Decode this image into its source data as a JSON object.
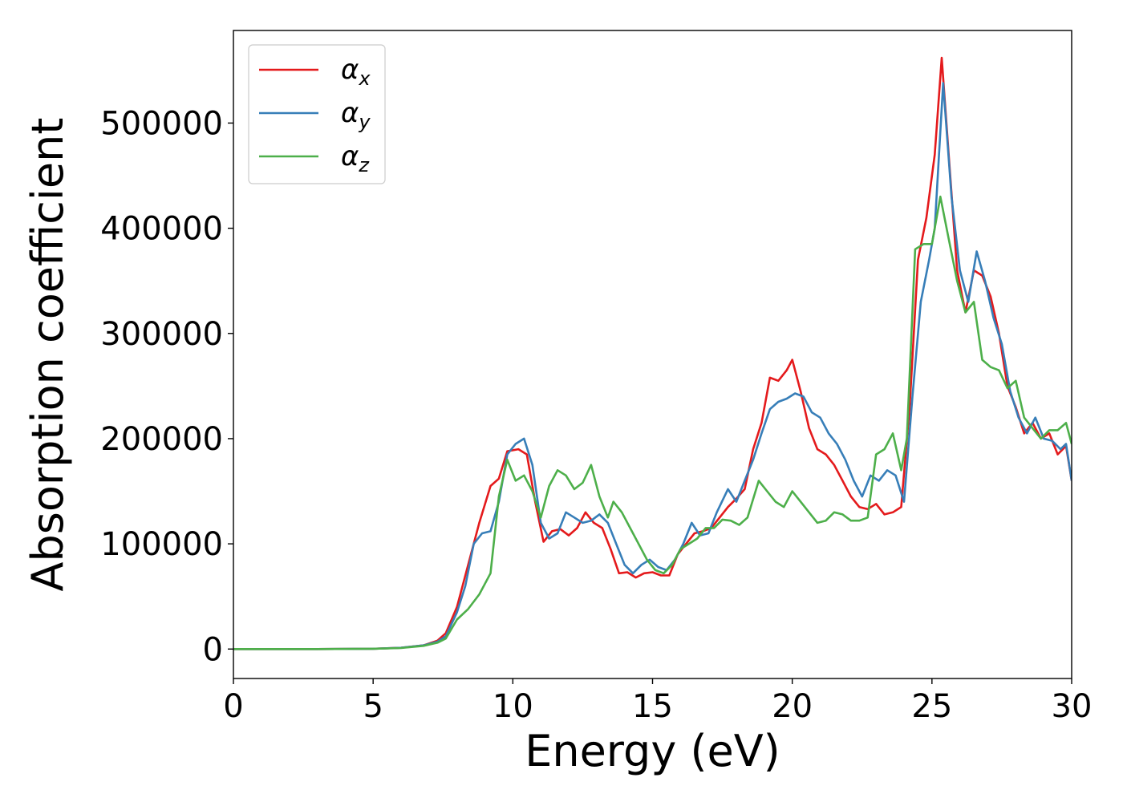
{
  "chart_data": {
    "type": "line",
    "title": "",
    "xlabel": "Energy (eV)",
    "ylabel": "Absorption coefficient",
    "xlim": [
      0,
      30
    ],
    "ylim": [
      -28000,
      588000
    ],
    "xticks": [
      0,
      5,
      10,
      15,
      20,
      25,
      30
    ],
    "yticks": [
      0,
      100000,
      200000,
      300000,
      400000,
      500000
    ],
    "xtick_labels": [
      "0",
      "5",
      "10",
      "15",
      "20",
      "25",
      "30"
    ],
    "ytick_labels": [
      "0",
      "100000",
      "200000",
      "300000",
      "400000",
      "500000"
    ],
    "grid": false,
    "legend_position": "top-left",
    "series": [
      {
        "name": "α",
        "subscript": "x",
        "color": "#e41a1c",
        "points": [
          [
            0,
            0
          ],
          [
            3,
            0
          ],
          [
            5,
            300
          ],
          [
            6,
            1200
          ],
          [
            6.8,
            3500
          ],
          [
            7.3,
            8000
          ],
          [
            7.6,
            15000
          ],
          [
            8.0,
            40000
          ],
          [
            8.5,
            90000
          ],
          [
            8.8,
            120000
          ],
          [
            9.2,
            155000
          ],
          [
            9.5,
            162000
          ],
          [
            9.8,
            188000
          ],
          [
            10.2,
            190000
          ],
          [
            10.5,
            185000
          ],
          [
            10.8,
            140000
          ],
          [
            11.1,
            102000
          ],
          [
            11.4,
            112000
          ],
          [
            11.7,
            114000
          ],
          [
            12.0,
            108000
          ],
          [
            12.3,
            115000
          ],
          [
            12.6,
            130000
          ],
          [
            12.9,
            120000
          ],
          [
            13.2,
            115000
          ],
          [
            13.5,
            95000
          ],
          [
            13.8,
            72000
          ],
          [
            14.1,
            73000
          ],
          [
            14.4,
            68000
          ],
          [
            14.7,
            72000
          ],
          [
            15.0,
            73000
          ],
          [
            15.3,
            70000
          ],
          [
            15.6,
            70000
          ],
          [
            15.9,
            90000
          ],
          [
            16.2,
            100000
          ],
          [
            16.5,
            110000
          ],
          [
            16.8,
            112000
          ],
          [
            17.1,
            115000
          ],
          [
            17.4,
            125000
          ],
          [
            17.7,
            135000
          ],
          [
            18.0,
            143000
          ],
          [
            18.3,
            152000
          ],
          [
            18.6,
            190000
          ],
          [
            18.9,
            215000
          ],
          [
            19.2,
            258000
          ],
          [
            19.5,
            255000
          ],
          [
            19.8,
            265000
          ],
          [
            20.0,
            275000
          ],
          [
            20.3,
            245000
          ],
          [
            20.6,
            210000
          ],
          [
            20.9,
            190000
          ],
          [
            21.2,
            185000
          ],
          [
            21.5,
            175000
          ],
          [
            21.8,
            160000
          ],
          [
            22.1,
            145000
          ],
          [
            22.4,
            135000
          ],
          [
            22.7,
            133000
          ],
          [
            23.0,
            138000
          ],
          [
            23.3,
            128000
          ],
          [
            23.6,
            130000
          ],
          [
            23.9,
            135000
          ],
          [
            24.2,
            230000
          ],
          [
            24.5,
            370000
          ],
          [
            24.8,
            410000
          ],
          [
            25.1,
            470000
          ],
          [
            25.35,
            562000
          ],
          [
            25.6,
            470000
          ],
          [
            25.9,
            360000
          ],
          [
            26.2,
            320000
          ],
          [
            26.5,
            360000
          ],
          [
            26.8,
            355000
          ],
          [
            27.1,
            335000
          ],
          [
            27.4,
            300000
          ],
          [
            27.7,
            250000
          ],
          [
            28.0,
            230000
          ],
          [
            28.3,
            205000
          ],
          [
            28.6,
            215000
          ],
          [
            28.9,
            200000
          ],
          [
            29.2,
            205000
          ],
          [
            29.5,
            185000
          ],
          [
            29.8,
            193000
          ],
          [
            30,
            160000
          ]
        ]
      },
      {
        "name": "α",
        "subscript": "y",
        "color": "#377eb8",
        "points": [
          [
            0,
            0
          ],
          [
            3,
            0
          ],
          [
            5,
            300
          ],
          [
            6,
            1200
          ],
          [
            6.8,
            3500
          ],
          [
            7.3,
            7000
          ],
          [
            7.6,
            12000
          ],
          [
            8.0,
            35000
          ],
          [
            8.3,
            60000
          ],
          [
            8.6,
            100000
          ],
          [
            8.9,
            110000
          ],
          [
            9.2,
            112000
          ],
          [
            9.5,
            140000
          ],
          [
            9.8,
            185000
          ],
          [
            10.1,
            195000
          ],
          [
            10.4,
            200000
          ],
          [
            10.7,
            175000
          ],
          [
            11.0,
            120000
          ],
          [
            11.3,
            105000
          ],
          [
            11.6,
            110000
          ],
          [
            11.9,
            130000
          ],
          [
            12.2,
            125000
          ],
          [
            12.5,
            120000
          ],
          [
            12.8,
            122000
          ],
          [
            13.1,
            128000
          ],
          [
            13.4,
            120000
          ],
          [
            13.7,
            100000
          ],
          [
            14.0,
            80000
          ],
          [
            14.3,
            72000
          ],
          [
            14.6,
            80000
          ],
          [
            14.9,
            85000
          ],
          [
            15.2,
            78000
          ],
          [
            15.5,
            75000
          ],
          [
            15.8,
            85000
          ],
          [
            16.1,
            100000
          ],
          [
            16.4,
            120000
          ],
          [
            16.7,
            108000
          ],
          [
            17.0,
            110000
          ],
          [
            17.3,
            130000
          ],
          [
            17.7,
            152000
          ],
          [
            18.0,
            140000
          ],
          [
            18.3,
            160000
          ],
          [
            18.6,
            180000
          ],
          [
            18.9,
            205000
          ],
          [
            19.2,
            228000
          ],
          [
            19.5,
            235000
          ],
          [
            19.8,
            238000
          ],
          [
            20.1,
            243000
          ],
          [
            20.4,
            240000
          ],
          [
            20.7,
            225000
          ],
          [
            21.0,
            220000
          ],
          [
            21.3,
            205000
          ],
          [
            21.6,
            195000
          ],
          [
            21.9,
            180000
          ],
          [
            22.2,
            160000
          ],
          [
            22.5,
            145000
          ],
          [
            22.8,
            165000
          ],
          [
            23.1,
            160000
          ],
          [
            23.4,
            170000
          ],
          [
            23.7,
            165000
          ],
          [
            24.0,
            140000
          ],
          [
            24.3,
            240000
          ],
          [
            24.6,
            330000
          ],
          [
            24.9,
            370000
          ],
          [
            25.1,
            400000
          ],
          [
            25.4,
            538000
          ],
          [
            25.7,
            430000
          ],
          [
            26.0,
            360000
          ],
          [
            26.3,
            330000
          ],
          [
            26.6,
            378000
          ],
          [
            26.9,
            350000
          ],
          [
            27.2,
            315000
          ],
          [
            27.5,
            290000
          ],
          [
            27.8,
            245000
          ],
          [
            28.1,
            220000
          ],
          [
            28.4,
            205000
          ],
          [
            28.7,
            220000
          ],
          [
            29.0,
            200000
          ],
          [
            29.3,
            198000
          ],
          [
            29.6,
            190000
          ],
          [
            29.8,
            195000
          ],
          [
            30,
            160000
          ]
        ]
      },
      {
        "name": "α",
        "subscript": "z",
        "color": "#4daf4a",
        "points": [
          [
            0,
            0
          ],
          [
            3,
            0
          ],
          [
            5,
            300
          ],
          [
            6,
            1000
          ],
          [
            6.8,
            3000
          ],
          [
            7.3,
            6000
          ],
          [
            7.6,
            10000
          ],
          [
            8.0,
            28000
          ],
          [
            8.4,
            38000
          ],
          [
            8.8,
            52000
          ],
          [
            9.2,
            72000
          ],
          [
            9.5,
            145000
          ],
          [
            9.8,
            180000
          ],
          [
            10.1,
            160000
          ],
          [
            10.4,
            165000
          ],
          [
            10.7,
            150000
          ],
          [
            11.0,
            125000
          ],
          [
            11.3,
            155000
          ],
          [
            11.6,
            170000
          ],
          [
            11.9,
            165000
          ],
          [
            12.2,
            152000
          ],
          [
            12.5,
            158000
          ],
          [
            12.8,
            175000
          ],
          [
            13.1,
            145000
          ],
          [
            13.4,
            125000
          ],
          [
            13.6,
            140000
          ],
          [
            13.9,
            130000
          ],
          [
            14.2,
            115000
          ],
          [
            14.5,
            100000
          ],
          [
            14.8,
            85000
          ],
          [
            15.1,
            75000
          ],
          [
            15.4,
            72000
          ],
          [
            15.7,
            80000
          ],
          [
            16.0,
            95000
          ],
          [
            16.3,
            100000
          ],
          [
            16.6,
            105000
          ],
          [
            16.9,
            115000
          ],
          [
            17.2,
            115000
          ],
          [
            17.5,
            123000
          ],
          [
            17.8,
            122000
          ],
          [
            18.1,
            118000
          ],
          [
            18.4,
            125000
          ],
          [
            18.8,
            160000
          ],
          [
            19.1,
            150000
          ],
          [
            19.4,
            140000
          ],
          [
            19.7,
            135000
          ],
          [
            20.0,
            150000
          ],
          [
            20.3,
            140000
          ],
          [
            20.6,
            130000
          ],
          [
            20.9,
            120000
          ],
          [
            21.2,
            122000
          ],
          [
            21.5,
            130000
          ],
          [
            21.8,
            128000
          ],
          [
            22.1,
            122000
          ],
          [
            22.4,
            122000
          ],
          [
            22.7,
            125000
          ],
          [
            23.0,
            185000
          ],
          [
            23.3,
            190000
          ],
          [
            23.6,
            205000
          ],
          [
            23.9,
            170000
          ],
          [
            24.1,
            200000
          ],
          [
            24.4,
            380000
          ],
          [
            24.7,
            385000
          ],
          [
            25.0,
            385000
          ],
          [
            25.3,
            430000
          ],
          [
            25.6,
            390000
          ],
          [
            25.9,
            350000
          ],
          [
            26.2,
            320000
          ],
          [
            26.5,
            330000
          ],
          [
            26.8,
            275000
          ],
          [
            27.1,
            268000
          ],
          [
            27.4,
            265000
          ],
          [
            27.7,
            248000
          ],
          [
            28.0,
            255000
          ],
          [
            28.3,
            220000
          ],
          [
            28.6,
            210000
          ],
          [
            28.9,
            200000
          ],
          [
            29.2,
            208000
          ],
          [
            29.5,
            208000
          ],
          [
            29.8,
            215000
          ],
          [
            30,
            195000
          ]
        ]
      }
    ]
  }
}
